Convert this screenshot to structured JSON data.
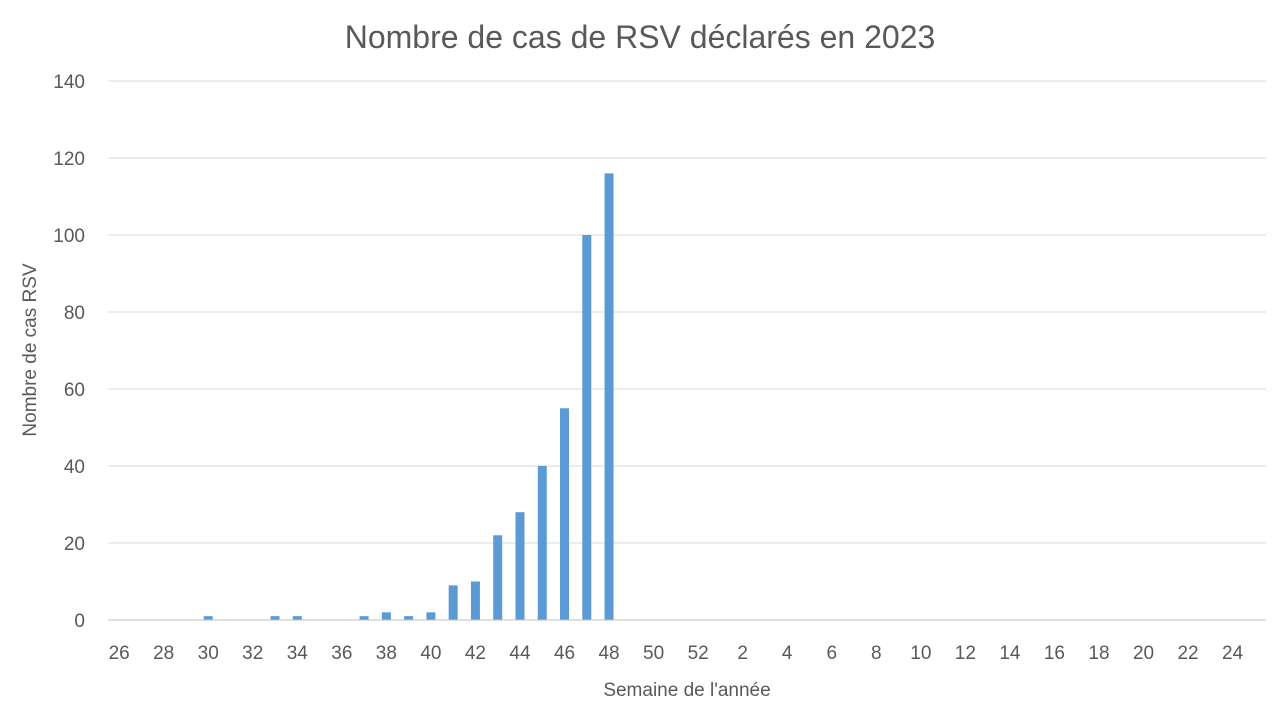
{
  "chart_data": {
    "type": "bar",
    "title": "Nombre de cas de RSV déclarés en 2023",
    "xlabel": "Semaine de l'année",
    "ylabel": "Nombre de cas RSV",
    "ylim": [
      0,
      140
    ],
    "y_ticks": [
      "0",
      "20",
      "40",
      "60",
      "80",
      "100",
      "120",
      "140"
    ],
    "grid": true,
    "categories": [
      "26",
      "27",
      "28",
      "29",
      "30",
      "31",
      "32",
      "33",
      "34",
      "35",
      "36",
      "37",
      "38",
      "39",
      "40",
      "41",
      "42",
      "43",
      "44",
      "45",
      "46",
      "47",
      "48",
      "49",
      "50",
      "51",
      "52",
      "1",
      "2",
      "3",
      "4",
      "5",
      "6",
      "7",
      "8",
      "9",
      "10",
      "11",
      "12",
      "13",
      "14",
      "15",
      "16",
      "17",
      "18",
      "19",
      "20",
      "21",
      "22",
      "23",
      "24",
      "25"
    ],
    "x_tick_labels": [
      "26",
      "28",
      "30",
      "32",
      "34",
      "36",
      "38",
      "40",
      "42",
      "44",
      "46",
      "48",
      "50",
      "52",
      "2",
      "4",
      "6",
      "8",
      "10",
      "12",
      "14",
      "16",
      "18",
      "20",
      "22",
      "24"
    ],
    "values": [
      0,
      0,
      0,
      0,
      1,
      0,
      0,
      1,
      1,
      0,
      0,
      1,
      2,
      1,
      2,
      9,
      10,
      22,
      28,
      40,
      55,
      100,
      116,
      0,
      0,
      0,
      0,
      0,
      0,
      0,
      0,
      0,
      0,
      0,
      0,
      0,
      0,
      0,
      0,
      0,
      0,
      0,
      0,
      0,
      0,
      0,
      0,
      0,
      0,
      0,
      0,
      0
    ],
    "color": "#5b9bd5"
  }
}
